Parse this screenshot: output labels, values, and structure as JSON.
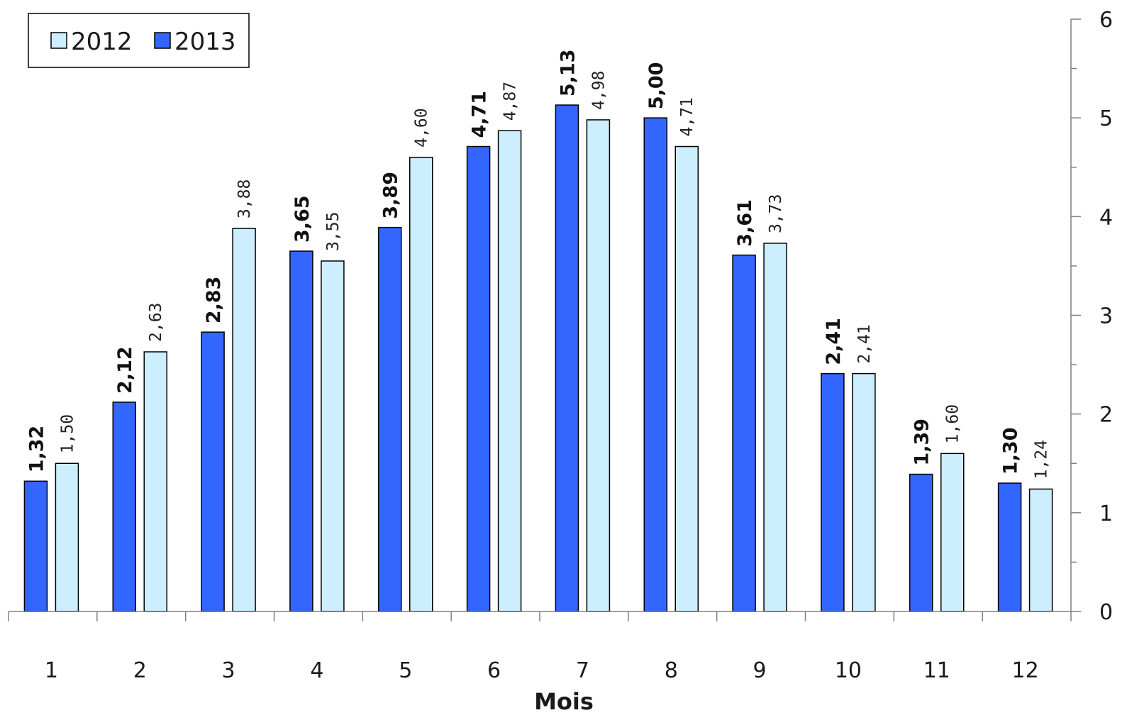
{
  "chart_data": {
    "type": "bar",
    "title": "",
    "xlabel": "Mois",
    "ylabel": "",
    "categories": [
      "1",
      "2",
      "3",
      "4",
      "5",
      "6",
      "7",
      "8",
      "9",
      "10",
      "11",
      "12"
    ],
    "series": [
      {
        "name": "2013",
        "color": "#3366ff",
        "values": [
          1.32,
          2.12,
          2.83,
          3.65,
          3.89,
          4.71,
          5.13,
          5.0,
          3.61,
          2.41,
          1.39,
          1.3
        ],
        "labels": [
          "1,32",
          "2,12",
          "2,83",
          "3,65",
          "3,89",
          "4,71",
          "5,13",
          "5,00",
          "3,61",
          "2,41",
          "1,39",
          "1,30"
        ]
      },
      {
        "name": "2012",
        "color": "#cceeff",
        "values": [
          1.5,
          2.63,
          3.88,
          3.55,
          4.6,
          4.87,
          4.98,
          4.71,
          3.73,
          2.41,
          1.6,
          1.24
        ],
        "labels": [
          "1,50",
          "2,63",
          "3,88",
          "3,55",
          "4,60",
          "4,87",
          "4,98",
          "4,71",
          "3,73",
          "2,41",
          "1,60",
          "1,24"
        ]
      }
    ],
    "ylim": [
      0,
      6
    ],
    "y_ticks": [
      "0",
      "1",
      "2",
      "3",
      "4",
      "5",
      "6"
    ],
    "y_axis_side": "right",
    "legend": {
      "position": "top-left",
      "order": [
        "2012",
        "2013"
      ]
    },
    "grid": false
  }
}
